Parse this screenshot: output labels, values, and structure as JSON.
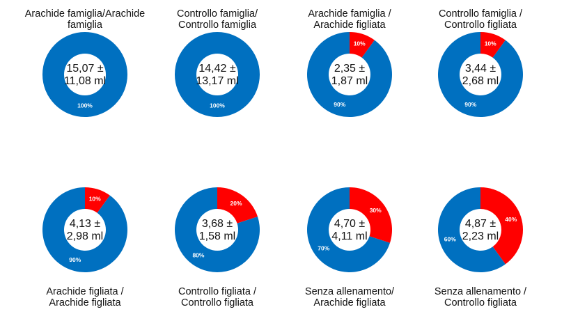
{
  "chart_data": {
    "type": "pie",
    "variant": "donut",
    "colors": {
      "positive": "#FF0000",
      "negative": "#0070C0"
    },
    "charts": [
      {
        "title": [
          "Arachide famiglia/Arachide",
          "famiglia"
        ],
        "center": [
          "15,07 ±",
          "11,08 ml"
        ],
        "values": [
          0,
          100
        ]
      },
      {
        "title": [
          "Controllo famiglia/",
          "Controllo famiglia"
        ],
        "center": [
          "14,42 ±",
          "13,17 ml"
        ],
        "values": [
          0,
          100
        ]
      },
      {
        "title": [
          "Arachide famiglia /",
          "Arachide figliata"
        ],
        "center": [
          "2,35 ±",
          "1,87 ml"
        ],
        "values": [
          10,
          90
        ]
      },
      {
        "title": [
          "Controllo famiglia /",
          "Controllo figliata"
        ],
        "center": [
          "3,44 ±",
          "2,68 ml"
        ],
        "values": [
          10,
          90
        ]
      },
      {
        "title": [
          "Arachide figliata /",
          "Arachide figliata"
        ],
        "center": [
          "4,13 ±",
          "2,98 ml"
        ],
        "values": [
          10,
          90
        ]
      },
      {
        "title": [
          "Controllo figliata /",
          "Controllo figliata"
        ],
        "center": [
          "3,68 ±",
          "1,58 ml"
        ],
        "values": [
          20,
          80
        ]
      },
      {
        "title": [
          "Senza allenamento/",
          "Arachide figliata"
        ],
        "center": [
          "4,70 ±",
          "4,11 ml"
        ],
        "values": [
          30,
          70
        ]
      },
      {
        "title": [
          "Senza allenamento /",
          "Controllo figliata"
        ],
        "center": [
          "4,87 ±",
          "2,23 ml"
        ],
        "values": [
          40,
          60
        ]
      }
    ]
  }
}
